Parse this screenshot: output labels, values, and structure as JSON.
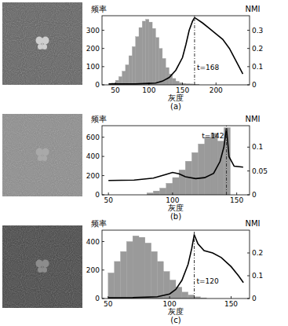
{
  "chart_data": [
    {
      "type": "histogram",
      "title": "(a)",
      "xlabel": "灰度",
      "ylabel": "频率",
      "y2label": "NMI",
      "bins": [
        40,
        45,
        50,
        55,
        60,
        65,
        70,
        75,
        80,
        85,
        90,
        95,
        100,
        105,
        110,
        115,
        120,
        125,
        130,
        135,
        140,
        145,
        150,
        155,
        160,
        165,
        170,
        175
      ],
      "counts": [
        5,
        10,
        25,
        45,
        75,
        110,
        160,
        210,
        265,
        315,
        350,
        360,
        345,
        310,
        260,
        200,
        145,
        95,
        60,
        35,
        20,
        12,
        8,
        6,
        5,
        4,
        3
      ],
      "color": "#9a9a9a",
      "xlim": [
        30,
        250
      ],
      "xticks": [
        50,
        100,
        150,
        200
      ],
      "ylim": [
        0,
        380
      ],
      "yticks": [
        0,
        100,
        200,
        300
      ],
      "y2lim": [
        0,
        0.38
      ],
      "y2ticks": [
        0,
        0.1,
        0.2,
        0.3
      ],
      "series": [
        {
          "type": "line",
          "axis": "y2",
          "color": "#000000",
          "x": [
            40,
            60,
            80,
            100,
            110,
            120,
            130,
            140,
            150,
            155,
            160,
            165,
            168,
            172,
            180,
            190,
            200,
            210,
            220,
            230,
            240
          ],
          "values": [
            0.005,
            0.005,
            0.005,
            0.008,
            0.01,
            0.02,
            0.04,
            0.08,
            0.15,
            0.22,
            0.3,
            0.35,
            0.37,
            0.36,
            0.34,
            0.31,
            0.28,
            0.25,
            0.2,
            0.13,
            0.06
          ]
        }
      ],
      "annotations": [
        {
          "text": "t=168",
          "x": 168
        }
      ]
    },
    {
      "type": "histogram",
      "title": "(b)",
      "xlabel": "灰度",
      "ylabel": "频率",
      "y2label": "NMI",
      "bins": [
        80,
        85,
        90,
        95,
        100,
        105,
        110,
        115,
        120,
        125,
        130,
        135,
        140,
        145
      ],
      "counts": [
        20,
        40,
        70,
        120,
        180,
        260,
        350,
        440,
        530,
        600,
        640,
        560,
        700
      ],
      "color": "#9a9a9a",
      "xlim": [
        45,
        160
      ],
      "xticks": [
        50,
        100,
        150
      ],
      "ylim": [
        0,
        720
      ],
      "yticks": [
        0,
        200,
        400,
        600
      ],
      "y2lim": [
        0,
        0.145
      ],
      "y2ticks": [
        0,
        0.05,
        0.1
      ],
      "series": [
        {
          "type": "line",
          "axis": "y2",
          "color": "#000000",
          "x": [
            50,
            70,
            85,
            95,
            100,
            105,
            110,
            118,
            125,
            132,
            137,
            140,
            142,
            144,
            148,
            155
          ],
          "values": [
            0.03,
            0.031,
            0.035,
            0.043,
            0.047,
            0.044,
            0.038,
            0.034,
            0.036,
            0.045,
            0.07,
            0.1,
            0.14,
            0.08,
            0.06,
            0.058
          ]
        }
      ],
      "annotations": [
        {
          "text": "t=142",
          "x": 142
        }
      ]
    },
    {
      "type": "histogram",
      "title": "(c)",
      "xlabel": "灰度",
      "ylabel": "频率",
      "y2label": "NMI",
      "bins": [
        50,
        55,
        60,
        65,
        70,
        75,
        80,
        85,
        90,
        95,
        100,
        105,
        110,
        115,
        120,
        125,
        130
      ],
      "counts": [
        180,
        260,
        330,
        400,
        440,
        430,
        390,
        330,
        260,
        190,
        130,
        80,
        45,
        25,
        12,
        5
      ],
      "color": "#9a9a9a",
      "xlim": [
        45,
        165
      ],
      "xticks": [
        50,
        100,
        150
      ],
      "ylim": [
        0,
        480
      ],
      "yticks": [
        0,
        200,
        400
      ],
      "y2lim": [
        0,
        0.3
      ],
      "y2ticks": [
        0,
        0.1,
        0.2
      ],
      "series": [
        {
          "type": "line",
          "axis": "y2",
          "color": "#000000",
          "x": [
            50,
            70,
            90,
            100,
            105,
            110,
            115,
            118,
            120,
            123,
            128,
            135,
            142,
            150,
            156,
            160
          ],
          "values": [
            0.003,
            0.004,
            0.008,
            0.02,
            0.04,
            0.08,
            0.15,
            0.22,
            0.28,
            0.24,
            0.21,
            0.2,
            0.18,
            0.14,
            0.1,
            0.07
          ]
        }
      ],
      "annotations": [
        {
          "text": "t=120",
          "x": 120
        }
      ]
    }
  ]
}
